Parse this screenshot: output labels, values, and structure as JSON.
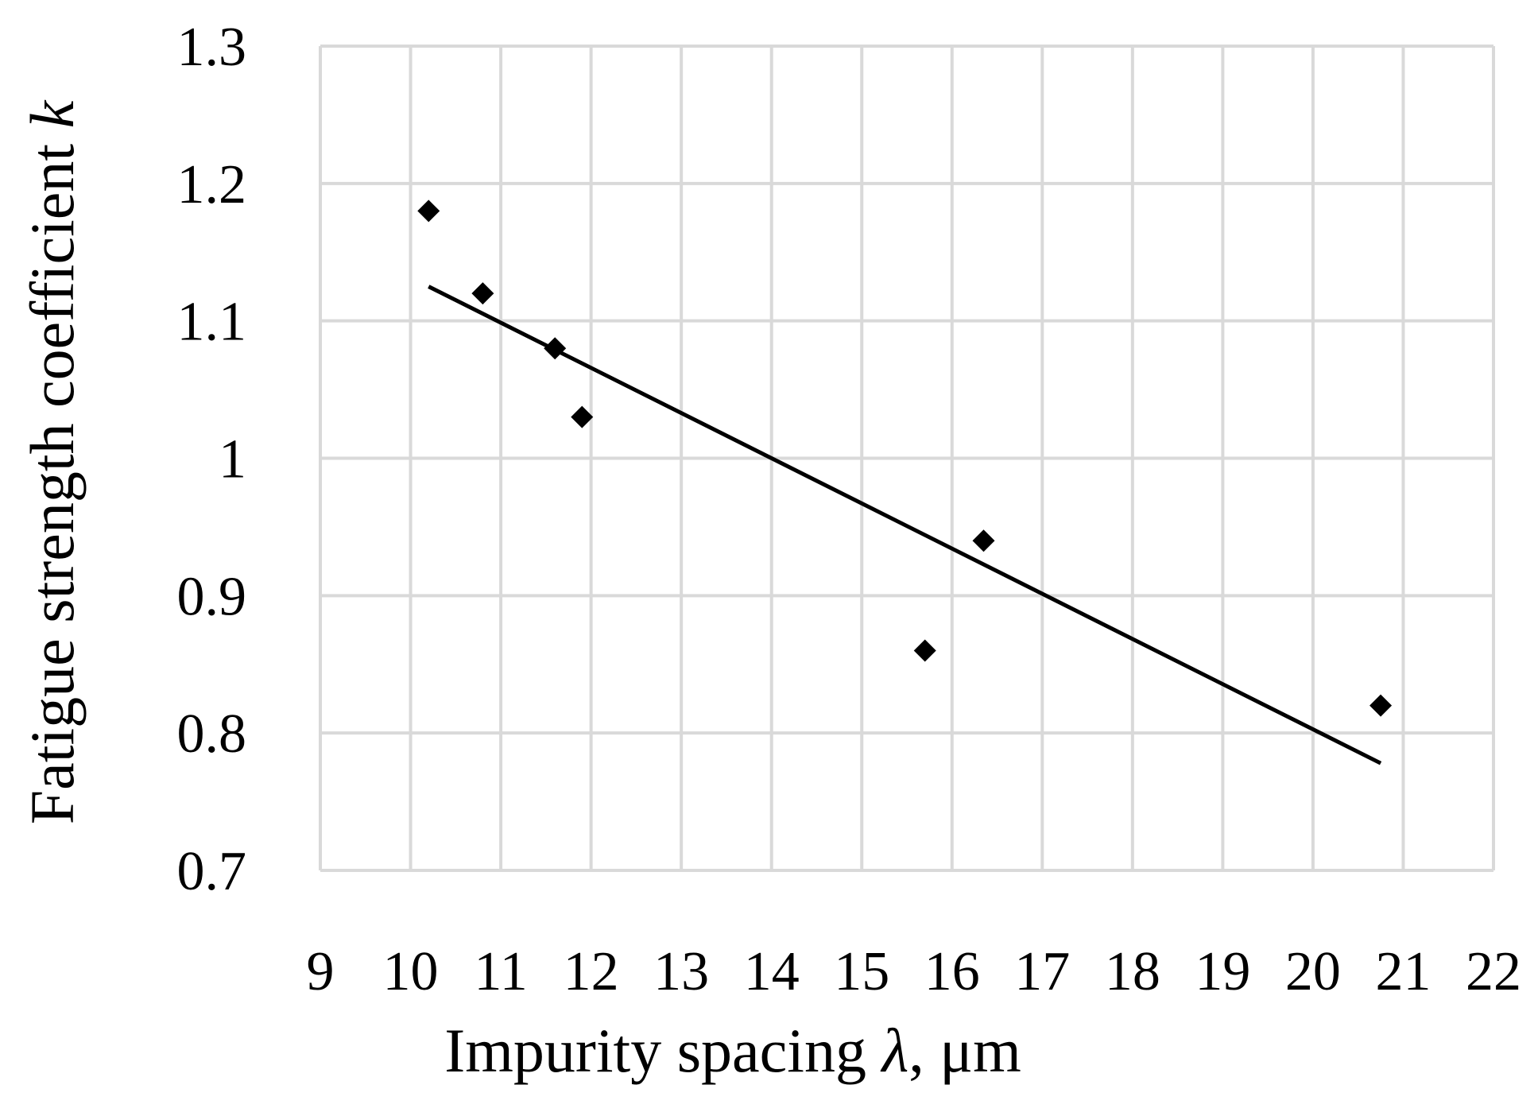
{
  "chart_data": {
    "type": "scatter",
    "title": "",
    "xlabel": {
      "prefix": "Impurity spacing ",
      "symbol": "λ",
      "suffix": ", μm"
    },
    "ylabel": {
      "prefix": "Fatigue strength coefficient ",
      "symbol": "k"
    },
    "xlim": [
      9,
      22
    ],
    "ylim": [
      0.7,
      1.3
    ],
    "x_ticks": [
      9,
      10,
      11,
      12,
      13,
      14,
      15,
      16,
      17,
      18,
      19,
      20,
      21,
      22
    ],
    "y_ticks": [
      0.7,
      0.8,
      0.9,
      1.0,
      1.1,
      1.2,
      1.3
    ],
    "x_tick_labels": [
      "9",
      "10",
      "11",
      "12",
      "13",
      "14",
      "15",
      "16",
      "17",
      "18",
      "19",
      "20",
      "21",
      "22"
    ],
    "y_tick_labels": [
      "0.7",
      "0.8",
      "0.9",
      "1",
      "1.1",
      "1.2",
      "1.3"
    ],
    "grid": true,
    "legend": "none",
    "series": [
      {
        "marker": "diamond",
        "color": "#000000",
        "x": [
          10.2,
          10.8,
          11.6,
          11.9,
          15.7,
          16.35,
          20.75
        ],
        "y": [
          1.18,
          1.12,
          1.08,
          1.03,
          0.86,
          0.94,
          0.82
        ]
      }
    ],
    "trendline": {
      "type": "linear",
      "color": "#000000",
      "x": [
        10.2,
        20.75
      ],
      "y": [
        1.125,
        0.778
      ]
    }
  }
}
